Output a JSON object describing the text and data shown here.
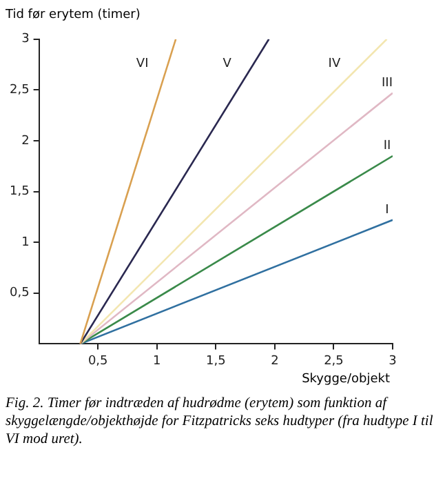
{
  "chart_data": {
    "type": "line",
    "ylabel": "Tid før erytem (timer)",
    "xlabel": "Skygge/objekt",
    "annotations": [
      "Fig. 2. Timer før indtræden af hudrødme (erytem) som funktion af skyggelængde/objekthøjde for Fitzpatricks seks hudtyper (fra hudtype I til VI mod uret)."
    ],
    "series": [
      {
        "name": "VI",
        "color": "#d9a050",
        "x": [
          0.35,
          1.16
        ],
        "values": [
          0,
          3
        ]
      },
      {
        "name": "V",
        "color": "#2a2850",
        "x": [
          0.35,
          1.95
        ],
        "values": [
          0,
          3
        ]
      },
      {
        "name": "IV",
        "color": "#f3e6b0",
        "x": [
          0.35,
          2.95
        ],
        "values": [
          0,
          3
        ]
      },
      {
        "name": "III",
        "color": "#e0b8c4",
        "x": [
          0.35,
          3
        ],
        "values": [
          0,
          2.47
        ]
      },
      {
        "name": "II",
        "color": "#3a8a4a",
        "x": [
          0.35,
          3
        ],
        "values": [
          0,
          1.85
        ]
      },
      {
        "name": "I",
        "color": "#3070a0",
        "x": [
          0.35,
          3
        ],
        "values": [
          0,
          1.22
        ]
      }
    ],
    "xlim": [
      0,
      3
    ],
    "ylim": [
      0,
      3
    ],
    "xticks": [
      {
        "value": 0.5,
        "label": "0,5"
      },
      1,
      {
        "value": 1.5,
        "label": "1,5"
      },
      2,
      {
        "value": 2.5,
        "label": "2,5"
      },
      3
    ],
    "yticks": [
      {
        "value": 0.5,
        "label": "0,5"
      },
      1,
      {
        "value": 1.5,
        "label": "1,5"
      },
      2,
      {
        "value": 2.5,
        "label": "2,5"
      },
      3
    ],
    "grid": false,
    "legend": false,
    "marker": "none",
    "line_style": "solid"
  }
}
